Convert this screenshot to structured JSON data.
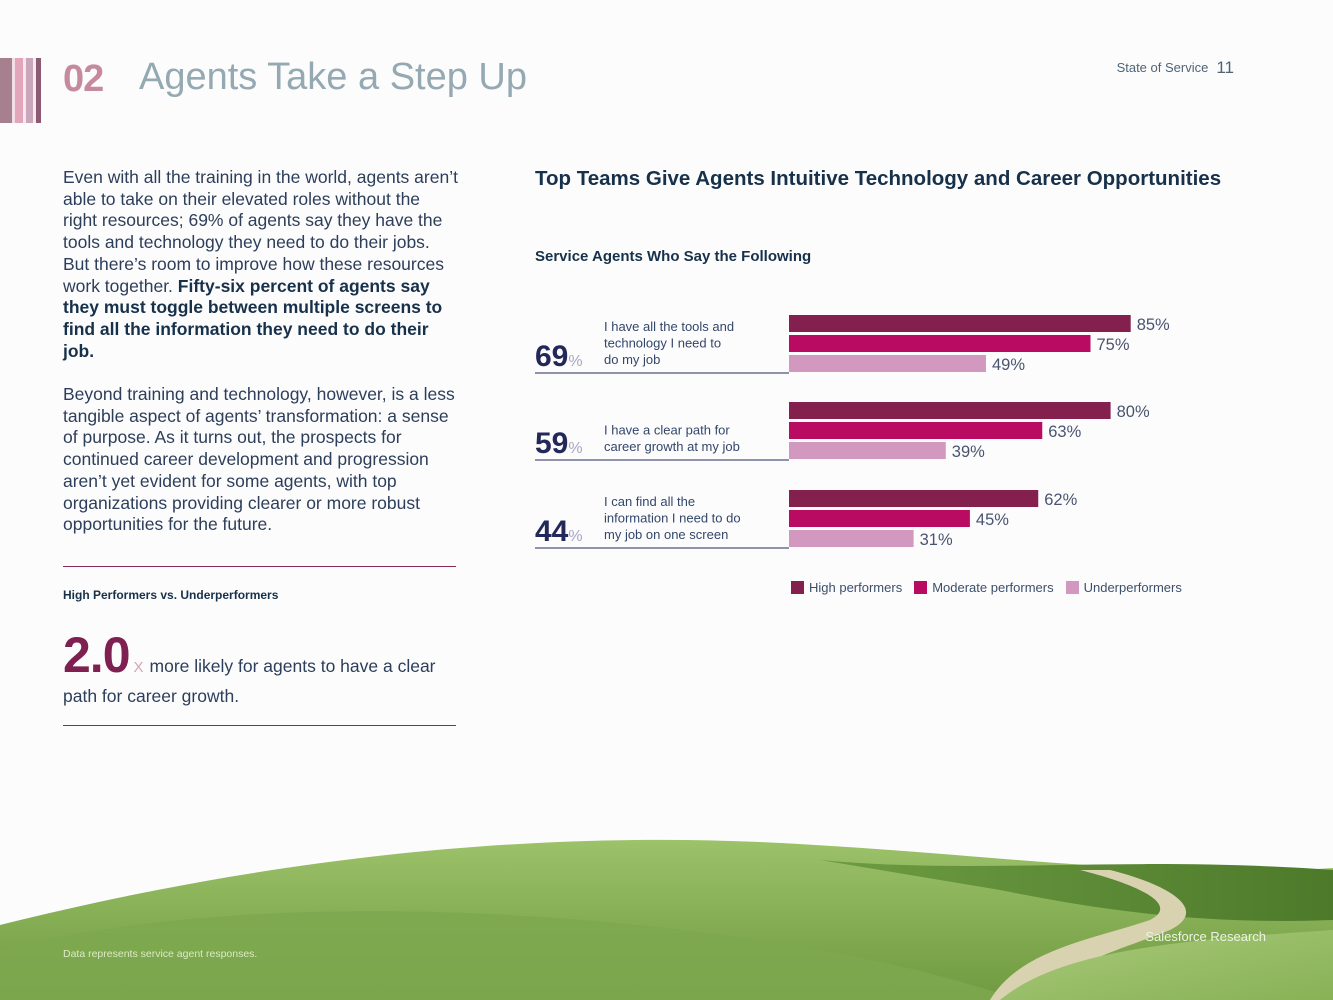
{
  "header": {
    "section_number": "02",
    "section_title": "Agents Take a Step Up",
    "report_name": "State of Service",
    "page_number": "11",
    "stripe_colors": [
      "#a6808f",
      "#f2dfe6",
      "#e3a5ba",
      "#f7e8ee",
      "#c9a6ba",
      "#f4eaf0",
      "#8a5b72"
    ]
  },
  "body": {
    "para1_plain": "Even with all the training in the world, agents aren’t able to take on their elevated roles without the right resources; 69% of agents say they have the tools and technology they need to do their jobs. But there’s room to improve how these resources work together. ",
    "para1_bold": "Fifty-six percent of agents say they must toggle between multiple screens to find all the information they need to do their job.",
    "para2": "Beyond training and technology, however, is a less tangible aspect of agents’ transformation: a sense of purpose. As it turns out, the prospects for continued career development and progression aren’t yet evident for some agents, with top organizations providing clearer or more robust opportunities for the future."
  },
  "callout": {
    "label": "High Performers vs. Underperformers",
    "value": "2.0",
    "multiplier": "X",
    "text": "more likely for agents to have a clear path for career growth."
  },
  "chart_data": {
    "type": "bar",
    "orientation": "horizontal",
    "title": "Top Teams Give Agents Intuitive Technology and Career Opportunities",
    "subtitle": "Service Agents Who Say the Following",
    "categories": [
      "I have all the tools and technology I need to do my job",
      "I have a clear path for career growth at my job",
      "I can find all the information I need to do my job on one screen"
    ],
    "category_lines": [
      [
        "I have all the tools and",
        "technology I need to",
        "do my job"
      ],
      [
        "I have a clear path for",
        "career growth at my job"
      ],
      [
        "I can find all the",
        "information I need to do",
        "my job on one screen"
      ]
    ],
    "totals": [
      69,
      59,
      44
    ],
    "total_unit": "%",
    "series": [
      {
        "name": "High performers",
        "color": "#84204e",
        "values": [
          85,
          80,
          62
        ]
      },
      {
        "name": "Moderate performers",
        "color": "#b80b61",
        "values": [
          75,
          63,
          45
        ]
      },
      {
        "name": "Underperformers",
        "color": "#d398c0",
        "values": [
          49,
          39,
          31
        ]
      }
    ],
    "value_suffix": "%",
    "xlim": [
      0,
      100
    ],
    "grid": false,
    "legend_position": "bottom"
  },
  "footer": {
    "note": "Data represents service agent responses.",
    "brand": "Salesforce Research"
  }
}
